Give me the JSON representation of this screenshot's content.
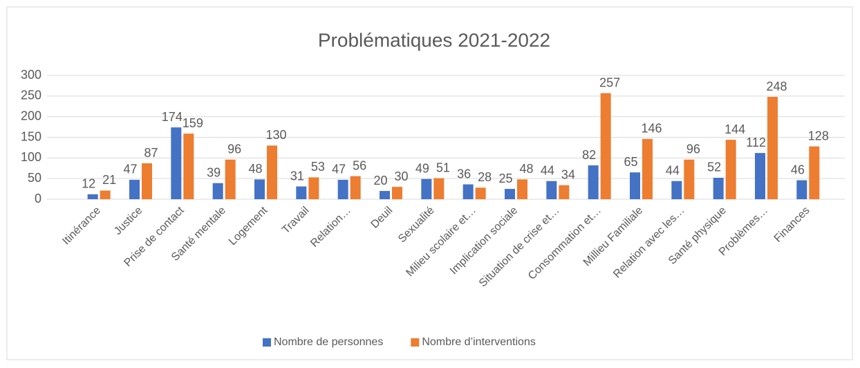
{
  "chart_data": {
    "type": "bar",
    "title": "Problématiques 2021-2022",
    "categories": [
      "Itinérance",
      "Justice",
      "Prise de contact",
      "Santé mentale",
      "Logement",
      "Travail",
      "Relation…",
      "Deuil",
      "Sexualité",
      "Milieu scolaire et…",
      "Implication sociale",
      "Situation de crise et…",
      "Consommation et…",
      "Millieu Familiale",
      "Relation avec les…",
      "Santé physique",
      "Problèmes…",
      "Finances"
    ],
    "series": [
      {
        "name": "Nombre de personnes",
        "color": "#4472c4",
        "values": [
          12,
          47,
          174,
          39,
          48,
          31,
          47,
          20,
          49,
          36,
          25,
          44,
          82,
          65,
          44,
          52,
          112,
          46
        ]
      },
      {
        "name": "Nombre d’interventions",
        "color": "#ed7d31",
        "values": [
          21,
          87,
          159,
          96,
          130,
          53,
          56,
          30,
          51,
          28,
          48,
          34,
          257,
          146,
          96,
          144,
          248,
          128
        ]
      }
    ],
    "ylim": [
      0,
      300
    ],
    "yticks": [
      0,
      50,
      100,
      150,
      200,
      250,
      300
    ],
    "grid": true,
    "legend": "bottom"
  }
}
